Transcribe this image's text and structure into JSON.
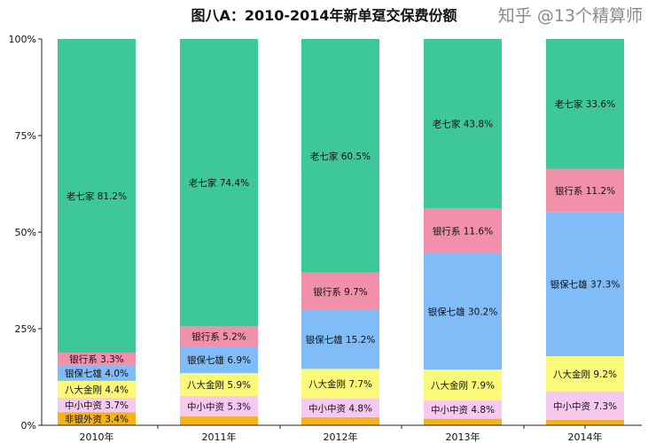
{
  "chart_data": {
    "type": "bar",
    "stacked": true,
    "title": "图八A：2010-2014年新单趸交保费份额",
    "xlabel": "",
    "ylabel": "",
    "ylim": [
      0,
      100
    ],
    "yticks": [
      "0%",
      "25%",
      "50%",
      "75%",
      "100%"
    ],
    "categories": [
      "2010年",
      "2011年",
      "2012年",
      "2013年",
      "2014年"
    ],
    "series": [
      {
        "name": "非银外资",
        "color": "#f5b31b",
        "values": [
          3.4,
          2.3,
          2.1,
          1.7,
          1.4
        ],
        "labels_shown": [
          true,
          false,
          false,
          false,
          false
        ]
      },
      {
        "name": "中小中资",
        "color": "#f7c8f0",
        "values": [
          3.7,
          5.3,
          4.8,
          4.8,
          7.3
        ]
      },
      {
        "name": "八大金刚",
        "color": "#fafa78",
        "values": [
          4.4,
          5.9,
          7.7,
          7.9,
          9.2
        ]
      },
      {
        "name": "银保七雄",
        "color": "#80bcf7",
        "values": [
          4.0,
          6.9,
          15.2,
          30.2,
          37.3
        ]
      },
      {
        "name": "银行系",
        "color": "#f28faa",
        "values": [
          3.3,
          5.2,
          9.7,
          11.6,
          11.2
        ]
      },
      {
        "name": "老七家",
        "color": "#3ec79b",
        "values": [
          81.2,
          74.4,
          60.5,
          43.8,
          33.6
        ]
      }
    ],
    "grid": false,
    "legend": "none"
  },
  "watermark": "知乎 @13个精算师"
}
